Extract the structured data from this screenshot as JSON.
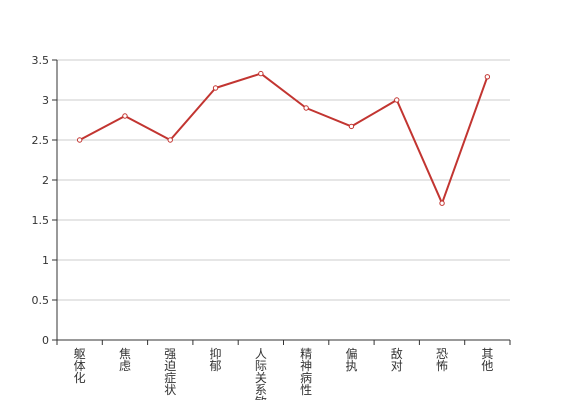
{
  "chart_data": {
    "type": "line",
    "categories": [
      "躯体化",
      "焦虑",
      "强迫症状",
      "抑郁",
      "人际关系敏感",
      "精神病性",
      "偏执",
      "敌对",
      "恐怖",
      "其他"
    ],
    "values": [
      2.5,
      2.8,
      2.5,
      3.15,
      3.33,
      2.9,
      2.67,
      3.0,
      1.71,
      3.29
    ],
    "title": "",
    "xlabel": "",
    "ylabel": "",
    "ylim": [
      0,
      3.5
    ],
    "yticks": [
      "0",
      "0.5",
      "1",
      "1.5",
      "2",
      "2.5",
      "3",
      "3.5"
    ],
    "grid": true,
    "line_color": "#c23531",
    "grid_color": "#cccccc",
    "axis_color": "#333333"
  }
}
